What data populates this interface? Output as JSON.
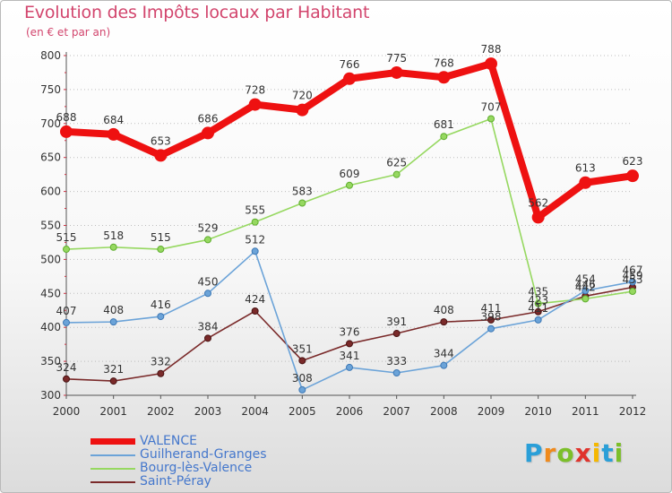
{
  "title": "Evolution des Impôts locaux par Habitant",
  "subtitle": "(en € et par an)",
  "logo": {
    "letters": [
      "P",
      "r",
      "o",
      "x",
      "i",
      "t",
      "i"
    ],
    "colors": [
      "#2a9fd8",
      "#f08a1c",
      "#7cbf2a",
      "#e0332c",
      "#f5b800",
      "#2a9fd8",
      "#7cbf2a"
    ]
  },
  "chart_data": {
    "type": "line",
    "title": "Evolution des Impôts locaux par Habitant",
    "subtitle": "(en € et par an)",
    "xlabel": "",
    "ylabel": "",
    "ylim": [
      300,
      800
    ],
    "yticks": [
      "300",
      "350",
      "400",
      "450",
      "500",
      "550",
      "600",
      "650",
      "700",
      "750",
      "800"
    ],
    "categories": [
      "2000",
      "2001",
      "2002",
      "2003",
      "2004",
      "2005",
      "2006",
      "2007",
      "2008",
      "2009",
      "2010",
      "2011",
      "2012"
    ],
    "grid": "horizontal dotted",
    "legend_position": "bottom-left",
    "series": [
      {
        "name": "VALENCE",
        "color": "#ee1111",
        "width": 8,
        "values": [
          688,
          684,
          653,
          686,
          728,
          720,
          766,
          775,
          768,
          788,
          562,
          613,
          623
        ],
        "labels": [
          "688",
          "684",
          "653",
          "686",
          "728",
          "720",
          "766",
          "775",
          "768",
          "788",
          "562",
          "613",
          "623"
        ]
      },
      {
        "name": "Guilherand-Granges",
        "color": "#6ba3d8",
        "width": 1.6,
        "values": [
          407,
          408,
          416,
          450,
          512,
          308,
          341,
          333,
          344,
          398,
          411,
          454,
          467
        ],
        "labels": [
          "407",
          "408",
          "416",
          "450",
          "512",
          "308",
          "341",
          "333",
          "344",
          "398",
          "411",
          "454",
          "467"
        ]
      },
      {
        "name": "Bourg-lès-Valence",
        "color": "#96d860",
        "width": 1.6,
        "values": [
          515,
          518,
          515,
          529,
          555,
          583,
          609,
          625,
          681,
          707,
          435,
          442,
          453
        ],
        "labels": [
          "515",
          "518",
          "515",
          "529",
          "555",
          "583",
          "609",
          "625",
          "681",
          "707",
          "435",
          "442",
          "453"
        ]
      },
      {
        "name": "Saint-Péray",
        "color": "#7a2a2a",
        "width": 1.6,
        "values": [
          324,
          321,
          332,
          384,
          424,
          351,
          376,
          391,
          408,
          411,
          423,
          446,
          459
        ],
        "labels": [
          "324",
          "321",
          "332",
          "384",
          "424",
          "351",
          "376",
          "391",
          "408",
          "411",
          "423",
          "446",
          "459"
        ]
      }
    ]
  }
}
